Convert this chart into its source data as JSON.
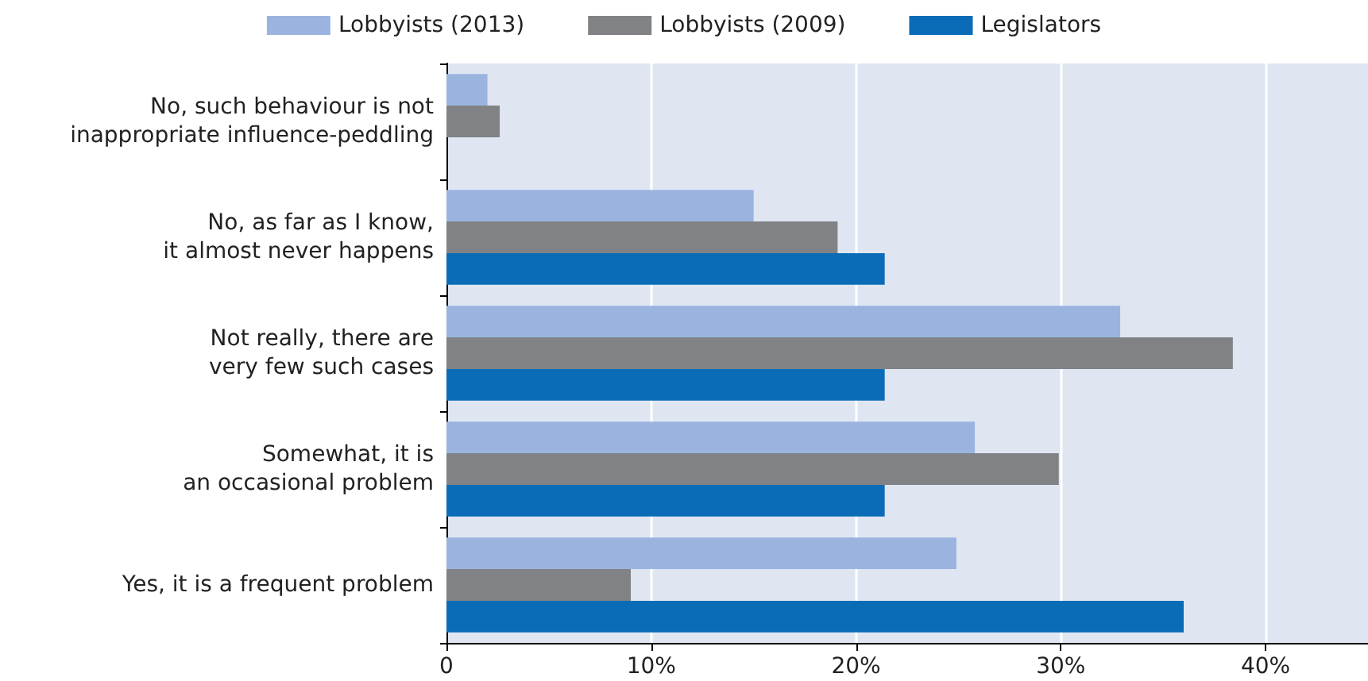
{
  "chart_data": {
    "type": "bar",
    "orientation": "horizontal",
    "categories": [
      "No, such behaviour is not\ninappropriate influence-peddling",
      "No, as far as I know,\nit almost never happens",
      "Not really, there are\nvery few such cases",
      "Somewhat, it is\nan occasional problem",
      "Yes, it is a frequent problem"
    ],
    "series": [
      {
        "name": "Lobbyists (2013)",
        "color": "#9ab4df",
        "values": [
          2.0,
          15.0,
          32.9,
          25.8,
          24.9
        ]
      },
      {
        "name": "Lobbyists (2009)",
        "color": "#808285",
        "values": [
          2.6,
          19.1,
          38.4,
          29.9,
          9.0
        ]
      },
      {
        "name": "Legislators",
        "color": "#0a6cb7",
        "values": [
          null,
          21.4,
          21.4,
          21.4,
          36.0
        ]
      }
    ],
    "xlim": [
      0,
      45
    ],
    "xticks": [
      {
        "value": 0,
        "label": "0"
      },
      {
        "value": 10,
        "label": "10%"
      },
      {
        "value": 20,
        "label": "20%"
      },
      {
        "value": 30,
        "label": "30%"
      },
      {
        "value": 40,
        "label": "40%"
      }
    ],
    "grid": "x",
    "legend": "top"
  }
}
